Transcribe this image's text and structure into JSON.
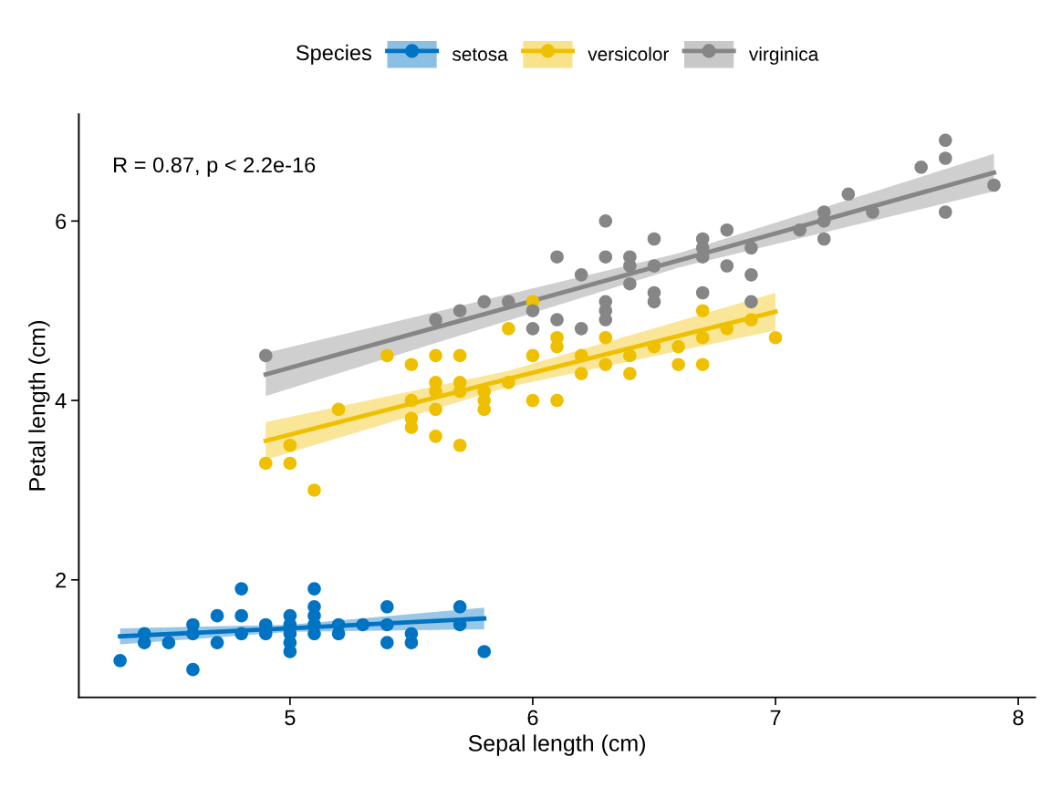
{
  "chart_data": {
    "type": "scatter",
    "xlabel": "Sepal length (cm)",
    "ylabel": "Petal length (cm)",
    "legend_title": "Species",
    "legend": "top",
    "marker": "circle",
    "xlim": [
      4.13,
      8.07
    ],
    "ylim": [
      0.69,
      7.19
    ],
    "xticks": [
      5,
      6,
      7,
      8
    ],
    "yticks": [
      2,
      4,
      6
    ],
    "annotations": [
      "R = 0.87, p < 2.2e-16"
    ],
    "series": [
      {
        "type": "scatter",
        "name": "setosa",
        "color": "#0073c2",
        "x": [
          5.1,
          4.9,
          4.7,
          4.6,
          5.0,
          5.4,
          4.6,
          5.0,
          4.4,
          4.9,
          5.4,
          4.8,
          4.8,
          4.3,
          5.8,
          5.7,
          5.4,
          5.7,
          5.1,
          4.6,
          5.1,
          4.8,
          5.0,
          5.2,
          5.2,
          4.7,
          5.5,
          5.0,
          5.5,
          4.4,
          5.0,
          4.5,
          5.1,
          5.1,
          5.3
        ],
        "values": [
          1.4,
          1.4,
          1.3,
          1.5,
          1.4,
          1.7,
          1.4,
          1.5,
          1.4,
          1.5,
          1.5,
          1.6,
          1.4,
          1.1,
          1.2,
          1.5,
          1.3,
          1.7,
          1.5,
          1.0,
          1.7,
          1.9,
          1.6,
          1.5,
          1.4,
          1.6,
          1.4,
          1.2,
          1.3,
          1.3,
          1.3,
          1.3,
          1.9,
          1.6,
          1.5
        ]
      },
      {
        "type": "scatter",
        "name": "versicolor",
        "color": "#efc000",
        "x": [
          7.0,
          6.4,
          6.9,
          5.5,
          6.5,
          5.7,
          6.3,
          4.9,
          6.6,
          5.2,
          5.0,
          5.9,
          6.0,
          6.1,
          5.6,
          6.7,
          5.6,
          5.8,
          6.2,
          5.6,
          5.9,
          6.1,
          6.4,
          6.6,
          6.8,
          6.7,
          6.0,
          5.7,
          5.5,
          5.5,
          5.8,
          6.0,
          5.4,
          6.7,
          6.3,
          5.6,
          5.5,
          6.1,
          5.8,
          5.0,
          5.6,
          5.7,
          6.2,
          5.1,
          5.7
        ],
        "values": [
          4.7,
          4.5,
          4.9,
          4.0,
          4.6,
          4.5,
          4.7,
          3.3,
          4.6,
          3.9,
          3.5,
          4.2,
          4.0,
          4.7,
          3.6,
          4.4,
          4.5,
          4.1,
          4.5,
          3.9,
          4.8,
          4.0,
          4.3,
          4.4,
          4.8,
          5.0,
          4.5,
          3.5,
          3.8,
          3.7,
          3.9,
          5.1,
          4.5,
          4.7,
          4.4,
          4.1,
          4.4,
          4.6,
          4.0,
          3.3,
          4.2,
          4.2,
          4.3,
          3.0,
          4.1
        ]
      },
      {
        "type": "scatter",
        "name": "virginica",
        "color": "#868686",
        "x": [
          6.3,
          5.8,
          7.1,
          6.3,
          6.5,
          7.6,
          4.9,
          7.3,
          6.7,
          7.2,
          6.5,
          6.4,
          6.8,
          5.7,
          6.5,
          7.7,
          7.7,
          6.0,
          6.9,
          5.6,
          6.3,
          6.7,
          7.2,
          6.2,
          6.1,
          6.4,
          7.2,
          7.4,
          7.9,
          6.3,
          6.1,
          7.7,
          6.4,
          6.0,
          6.9,
          6.7,
          6.9,
          6.8,
          6.7,
          6.3,
          6.5,
          6.2,
          5.9
        ],
        "values": [
          6.0,
          5.1,
          5.9,
          5.6,
          5.8,
          6.6,
          4.5,
          6.3,
          5.8,
          6.1,
          5.1,
          5.3,
          5.5,
          5.0,
          5.5,
          6.7,
          6.9,
          5.0,
          5.7,
          4.9,
          4.9,
          5.7,
          6.0,
          4.8,
          4.9,
          5.6,
          5.8,
          6.1,
          6.4,
          5.1,
          5.6,
          6.1,
          5.5,
          4.8,
          5.4,
          5.6,
          5.1,
          5.9,
          5.2,
          5.0,
          5.2,
          5.4,
          5.1
        ]
      },
      {
        "type": "line",
        "marker": "none",
        "color": "#0073c2",
        "x": [
          4.3,
          5.0,
          5.8
        ],
        "values": [
          1.37,
          1.46,
          1.57
        ],
        "lower": [
          1.28,
          1.42,
          1.45
        ],
        "upper": [
          1.46,
          1.5,
          1.69
        ]
      },
      {
        "type": "line",
        "marker": "none",
        "color": "#efc000",
        "x": [
          4.9,
          5.9,
          7.0
        ],
        "values": [
          3.55,
          4.24,
          4.99
        ],
        "lower": [
          3.34,
          4.15,
          4.78
        ],
        "upper": [
          3.76,
          4.33,
          5.2
        ]
      },
      {
        "type": "line",
        "marker": "none",
        "color": "#868686",
        "x": [
          4.9,
          6.6,
          7.9
        ],
        "values": [
          4.29,
          5.56,
          6.54
        ],
        "lower": [
          4.05,
          5.48,
          6.33
        ],
        "upper": [
          4.53,
          5.64,
          6.75
        ]
      }
    ]
  }
}
